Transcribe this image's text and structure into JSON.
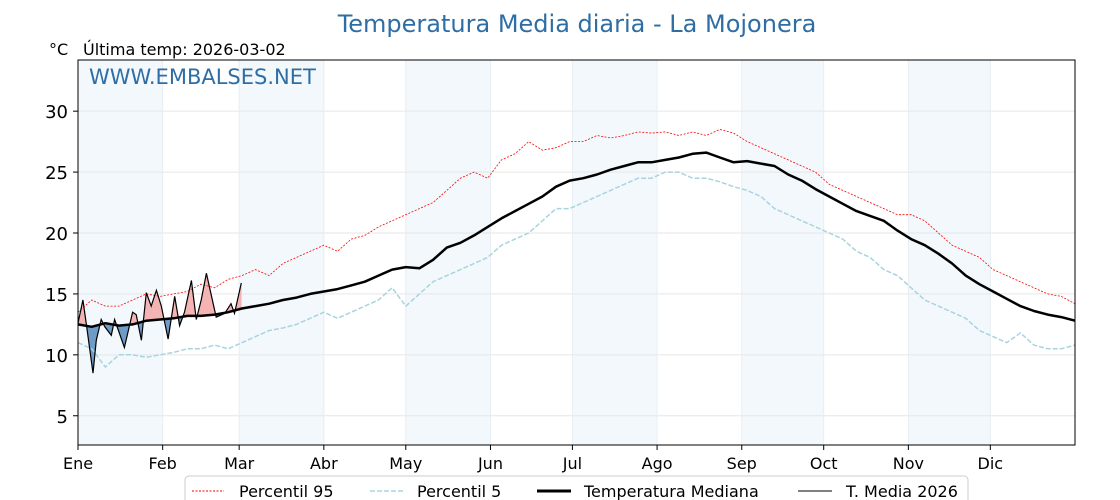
{
  "chart_data": {
    "type": "line",
    "title": "Temperatura Media diaria - La Mojonera",
    "unit_label": "°C",
    "subtitle": "Última temp: 2026-03-02",
    "watermark": "WWW.EMBALSES.NET",
    "xlabel": "",
    "ylabel": "°C",
    "ylim": [
      2.6,
      34.2
    ],
    "xlim_days": [
      0,
      365
    ],
    "yticks": [
      5,
      10,
      15,
      20,
      25,
      30
    ],
    "months": [
      "Ene",
      "Feb",
      "Mar",
      "Abr",
      "May",
      "Jun",
      "Jul",
      "Ago",
      "Sep",
      "Oct",
      "Nov",
      "Dic"
    ],
    "month_start_days": [
      0,
      31,
      59,
      90,
      120,
      151,
      181,
      212,
      243,
      273,
      304,
      334
    ],
    "grid": true,
    "legend_position": "bottom-center",
    "legend": [
      "Percentil 95",
      "Percentil 5",
      "Temperatura Mediana",
      "T. Media 2026"
    ],
    "colors": {
      "p95": "#ff0000",
      "p5": "#a8d4e0",
      "median": "#000000",
      "current": "#000000",
      "above_fill": "#f4b4b4",
      "below_fill": "#6f9cc6",
      "title": "#2f6ea5",
      "band": "#f3f8fc"
    },
    "series_step_days": 5,
    "median": [
      12.5,
      12.3,
      12.6,
      12.4,
      12.5,
      12.8,
      12.9,
      13.0,
      13.2,
      13.2,
      13.3,
      13.5,
      13.8,
      14.0,
      14.2,
      14.5,
      14.7,
      15.0,
      15.2,
      15.4,
      15.7,
      16.0,
      16.5,
      17.0,
      17.2,
      17.1,
      17.8,
      18.8,
      19.2,
      19.8,
      20.5,
      21.2,
      21.8,
      22.4,
      23.0,
      23.8,
      24.3,
      24.5,
      24.8,
      25.2,
      25.5,
      25.8,
      25.8,
      26.0,
      26.2,
      26.5,
      26.6,
      26.2,
      25.8,
      25.9,
      25.7,
      25.5,
      24.8,
      24.3,
      23.6,
      23.0,
      22.4,
      21.8,
      21.4,
      21.0,
      20.2,
      19.5,
      19.0,
      18.3,
      17.5,
      16.5,
      15.8,
      15.2,
      14.6,
      14.0,
      13.6,
      13.3,
      13.1,
      12.8
    ],
    "p95": [
      13.5,
      14.5,
      14.0,
      14.0,
      14.5,
      15.0,
      14.8,
      15.0,
      15.2,
      15.8,
      15.5,
      16.2,
      16.5,
      17.0,
      16.5,
      17.5,
      18.0,
      18.5,
      19.0,
      18.5,
      19.5,
      19.8,
      20.5,
      21.0,
      21.5,
      22.0,
      22.5,
      23.5,
      24.5,
      25.0,
      24.5,
      26.0,
      26.5,
      27.5,
      26.8,
      27.0,
      27.5,
      27.5,
      28.0,
      27.8,
      28.0,
      28.3,
      28.2,
      28.3,
      28.0,
      28.3,
      28.0,
      28.5,
      28.2,
      27.5,
      27.0,
      26.5,
      26.0,
      25.5,
      25.0,
      24.0,
      23.5,
      23.0,
      22.5,
      22.0,
      21.5,
      21.5,
      21.0,
      20.0,
      19.0,
      18.5,
      18.0,
      17.0,
      16.5,
      16.0,
      15.5,
      15.0,
      14.8,
      14.2
    ],
    "p5": [
      11.0,
      10.5,
      9.0,
      10.0,
      10.0,
      9.8,
      10.0,
      10.2,
      10.5,
      10.5,
      10.8,
      10.5,
      11.0,
      11.5,
      12.0,
      12.2,
      12.5,
      13.0,
      13.5,
      13.0,
      13.5,
      14.0,
      14.5,
      15.5,
      14.0,
      15.0,
      16.0,
      16.5,
      17.0,
      17.5,
      18.0,
      19.0,
      19.5,
      20.0,
      21.0,
      22.0,
      22.0,
      22.5,
      23.0,
      23.5,
      24.0,
      24.5,
      24.5,
      25.0,
      25.0,
      24.5,
      24.5,
      24.2,
      23.8,
      23.5,
      23.0,
      22.0,
      21.5,
      21.0,
      20.5,
      20.0,
      19.5,
      18.5,
      18.0,
      17.0,
      16.5,
      15.5,
      14.5,
      14.0,
      13.5,
      13.0,
      12.0,
      11.5,
      11.0,
      11.8,
      10.8,
      10.5,
      10.5,
      10.8
    ],
    "current_2026": {
      "days": [
        0,
        1.8,
        3,
        5.5,
        6.7,
        8.5,
        9.8,
        12.2,
        13.4,
        17,
        20,
        21.3,
        23.2,
        25,
        26.8,
        28.7,
        30.5,
        33,
        35.4,
        37.2,
        39,
        41.5,
        43.3,
        45.1,
        47,
        50.6,
        53.7,
        56,
        57.3,
        59.8
      ],
      "values": [
        12.6,
        14.5,
        12.6,
        8.5,
        11.2,
        12.9,
        12.3,
        11.6,
        12.9,
        10.6,
        13.5,
        13.3,
        11.2,
        15.1,
        14.0,
        15.3,
        14.0,
        11.3,
        14.8,
        12.4,
        13.5,
        16.1,
        12.9,
        14.5,
        16.7,
        13.1,
        13.4,
        14.2,
        13.4,
        15.9
      ]
    }
  }
}
